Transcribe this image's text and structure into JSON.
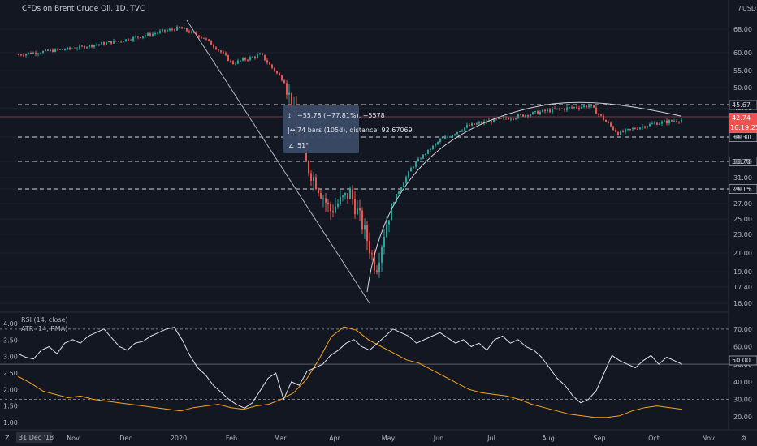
{
  "header": {
    "title": "CFDs on Brent Crude Oil, 1D, TVC",
    "currency": "USD",
    "currency_marker": "7"
  },
  "price_axis": {
    "ticks": [
      "68.00",
      "60.00",
      "55.00",
      "50.00",
      "45.00",
      "39.31",
      "33.70",
      "31.00",
      "29.15",
      "27.00",
      "25.00",
      "23.00",
      "21.00",
      "19.00",
      "17.40",
      "16.00"
    ]
  },
  "badges": {
    "last_price": "42.74",
    "countdown": "16:19:25",
    "level_top": "45.67"
  },
  "levels": {
    "values": [
      45.67,
      39.31,
      33.7,
      29.15
    ],
    "top_label": "45.67",
    "mid_label": "39.31",
    "low_label": "33.70",
    "bottom_label": "29.15"
  },
  "time_axis": {
    "start_label": "31 Dec '18",
    "ticks": [
      "Nov",
      "Dec",
      "2020",
      "Feb",
      "Mar",
      "Apr",
      "May",
      "Jun",
      "Jul",
      "Aug",
      "Sep",
      "Oct",
      "Nov"
    ]
  },
  "measure_tool": {
    "line1": "−55.78 (−77.81%), −5578",
    "line2": "74 bars (105d), distance: 92.67069",
    "line3": "51°"
  },
  "indicators": {
    "rsi_label": "RSI (14, close)",
    "atr_label": "ATR (14, RMA)",
    "rsi_ticks": [
      "70.00",
      "60.00",
      "50.00",
      "40.00",
      "30.00",
      "20.00"
    ],
    "atr_ticks": [
      "4.00",
      "3.50",
      "3.00",
      "2.50",
      "2.00",
      "1.50",
      "1.00"
    ],
    "rsi_current": "50.00"
  },
  "colors": {
    "background": "#131722",
    "up": "#26a69a",
    "down": "#ef5350",
    "rsi_line": "#e0e3eb",
    "atr_line": "#f7a21b",
    "level_line": "#d1d4dc"
  },
  "chart_data": {
    "type": "candlestick",
    "title": "CFDs on Brent Crude Oil, 1D, TVC",
    "symbol": "Brent Crude Oil",
    "interval": "1D",
    "currency": "USD",
    "x_labels": [
      "Nov",
      "Dec",
      "2020",
      "Feb",
      "Mar",
      "Apr",
      "May",
      "Jun",
      "Jul",
      "Aug",
      "Sep",
      "Oct",
      "Nov"
    ],
    "close_path": [
      {
        "t": "Oct",
        "v": 59.5
      },
      {
        "t": "Nov",
        "v": 61.5
      },
      {
        "t": "Dec",
        "v": 64.5
      },
      {
        "t": "2020",
        "v": 68.5
      },
      {
        "t": "Jan-mid",
        "v": 65.0
      },
      {
        "t": "Feb",
        "v": 57.0
      },
      {
        "t": "Feb-mid",
        "v": 59.5
      },
      {
        "t": "Mar",
        "v": 51.5
      },
      {
        "t": "Mar-mid",
        "v": 33.5
      },
      {
        "t": "Apr",
        "v": 26.0
      },
      {
        "t": "Apr-mid",
        "v": 28.5
      },
      {
        "t": "Apr-late",
        "v": 19.3
      },
      {
        "t": "May",
        "v": 26.5
      },
      {
        "t": "May-mid",
        "v": 32.5
      },
      {
        "t": "Jun",
        "v": 38.5
      },
      {
        "t": "Jun-mid",
        "v": 41.5
      },
      {
        "t": "Jul",
        "v": 42.5
      },
      {
        "t": "Aug",
        "v": 44.5
      },
      {
        "t": "Aug-late",
        "v": 45.5
      },
      {
        "t": "Sep",
        "v": 40.0
      },
      {
        "t": "Sep-mid",
        "v": 41.0
      },
      {
        "t": "Oct",
        "v": 42.0
      },
      {
        "t": "Oct-mid",
        "v": 42.74
      }
    ],
    "horizontal_levels": [
      45.67,
      39.31,
      33.7,
      29.15
    ],
    "last_price": 42.74,
    "measurement": {
      "change": -55.78,
      "change_pct": -77.81,
      "bars": 74,
      "days": 105,
      "distance": 92.67069,
      "angle_deg": 51
    },
    "rsi": {
      "length": 14,
      "source": "close",
      "ylim": [
        15,
        75
      ],
      "bands": [
        70,
        50,
        30
      ],
      "values": [
        56,
        54,
        53,
        58,
        60,
        56,
        62,
        64,
        62,
        66,
        68,
        70,
        65,
        60,
        58,
        62,
        63,
        66,
        68,
        70,
        71,
        64,
        55,
        48,
        44,
        38,
        34,
        30,
        27,
        25,
        28,
        35,
        42,
        45,
        30,
        40,
        38,
        46,
        48,
        50,
        55,
        58,
        62,
        64,
        60,
        58,
        62,
        66,
        70,
        68,
        66,
        62,
        64,
        66,
        68,
        65,
        62,
        64,
        60,
        62,
        58,
        64,
        66,
        62,
        64,
        60,
        58,
        54,
        48,
        42,
        38,
        32,
        28,
        30,
        35,
        45,
        55,
        52,
        50,
        48,
        52,
        55,
        50,
        54,
        52,
        50
      ]
    },
    "atr": {
      "length": 14,
      "method": "RMA",
      "ylim": [
        0.9,
        4.1
      ],
      "values": [
        2.4,
        2.2,
        1.95,
        1.85,
        1.75,
        1.8,
        1.7,
        1.65,
        1.6,
        1.55,
        1.5,
        1.45,
        1.4,
        1.35,
        1.45,
        1.5,
        1.55,
        1.45,
        1.4,
        1.5,
        1.55,
        1.7,
        1.9,
        2.3,
        2.9,
        3.6,
        3.9,
        3.8,
        3.5,
        3.3,
        3.1,
        2.9,
        2.8,
        2.6,
        2.4,
        2.2,
        2.0,
        1.9,
        1.85,
        1.8,
        1.7,
        1.55,
        1.45,
        1.35,
        1.25,
        1.2,
        1.15,
        1.15,
        1.2,
        1.35,
        1.45,
        1.5,
        1.45,
        1.4
      ]
    }
  }
}
